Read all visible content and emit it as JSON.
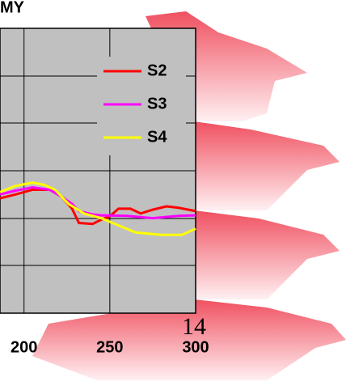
{
  "chart_data": {
    "type": "line",
    "title": "MY",
    "annotation": "14",
    "xlim": [
      186,
      300
    ],
    "xticks": [
      200,
      250,
      300
    ],
    "ylim": [
      0,
      6
    ],
    "grid": true,
    "legend": "top-right",
    "series": [
      {
        "name": "S2",
        "color": "#ff0000",
        "x": [
          186,
          195,
          205,
          215,
          222,
          228,
          232,
          240,
          245,
          250,
          255,
          262,
          268,
          275,
          283,
          290,
          300
        ],
        "values": [
          2.42,
          2.5,
          2.6,
          2.6,
          2.45,
          2.2,
          1.9,
          1.88,
          1.97,
          2.04,
          2.2,
          2.2,
          2.1,
          2.18,
          2.25,
          2.22,
          2.15
        ]
      },
      {
        "name": "S3",
        "color": "#ff00ff",
        "x": [
          186,
          195,
          205,
          215,
          222,
          228,
          232,
          240,
          245,
          260,
          275,
          290,
          300
        ],
        "values": [
          2.5,
          2.58,
          2.65,
          2.6,
          2.45,
          2.3,
          2.15,
          2.08,
          2.06,
          2.05,
          2.0,
          2.05,
          2.06
        ]
      },
      {
        "name": "S4",
        "color": "#ffff00",
        "x": [
          186,
          195,
          205,
          212,
          218,
          226,
          235,
          245,
          255,
          265,
          280,
          292,
          300
        ],
        "values": [
          2.55,
          2.68,
          2.75,
          2.7,
          2.6,
          2.3,
          2.1,
          2.0,
          1.85,
          1.7,
          1.65,
          1.65,
          1.78
        ]
      }
    ]
  }
}
